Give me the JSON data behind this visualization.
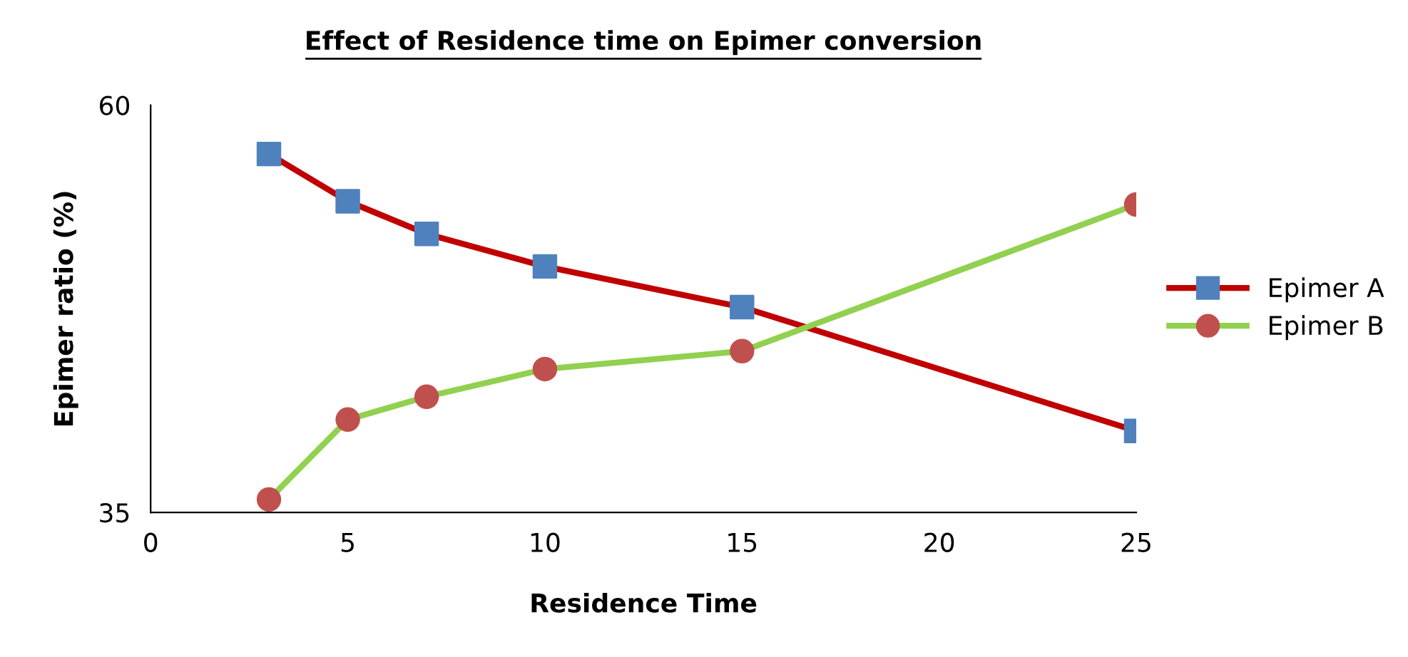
{
  "chart_data": {
    "type": "line",
    "title": "Effect of Residence time on Epimer conversion",
    "xlabel": "Residence Time",
    "ylabel": "Epimer ratio (%)",
    "x": [
      3,
      5,
      7,
      10,
      15,
      25
    ],
    "series": [
      {
        "name": "Epimer A",
        "color": "#c00000",
        "colors": [
          "#4f81bd",
          "#4f81bd",
          "#4f81bd",
          "#4f81bd",
          "#4f81bd",
          "#4f81bd"
        ],
        "marker": "square",
        "values": [
          57.0,
          54.1,
          52.1,
          50.1,
          47.6,
          40.0
        ]
      },
      {
        "name": "Epimer B",
        "color": "#92d050",
        "colors": [
          "#c0504d",
          "#c0504d",
          "#c0504d",
          "#c0504d",
          "#c0504d",
          "#c0504d"
        ],
        "marker": "circle",
        "values": [
          35.8,
          40.7,
          42.1,
          43.8,
          44.9,
          53.9
        ]
      }
    ],
    "xlim": [
      0,
      25
    ],
    "xticks": [
      0,
      5,
      10,
      15,
      20,
      25
    ],
    "ylim": [
      35,
      60
    ],
    "yticks": [
      35,
      60
    ],
    "grid": false,
    "legend": "right",
    "line_style": "solid"
  }
}
